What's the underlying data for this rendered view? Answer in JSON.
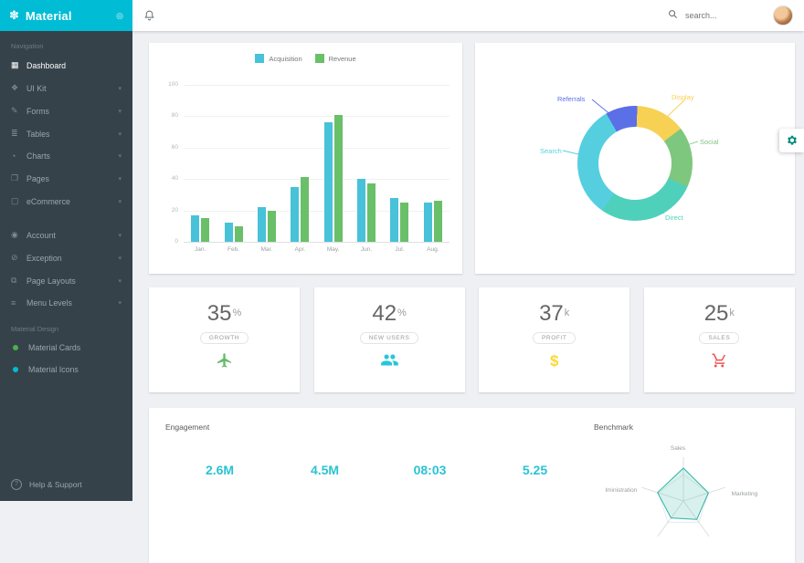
{
  "brand": {
    "name": "Material",
    "logo_icon": "material-flower",
    "pin_icon": "pin"
  },
  "topbar": {
    "bell_icon": "bell",
    "search_icon": "magnifier",
    "search_placeholder": "search..."
  },
  "colors": {
    "accent": "#00bcd4",
    "sidebar_bg": "#36424a",
    "engagement_value": "#2bc3d4"
  },
  "sidebar": {
    "nav_section": "Navigation",
    "primary": [
      {
        "label": "Dashboard",
        "icon": "dashboard",
        "active": true,
        "expandable": false
      },
      {
        "label": "UI Kit",
        "icon": "ui-kit",
        "expandable": true
      },
      {
        "label": "Forms",
        "icon": "forms",
        "expandable": true
      },
      {
        "label": "Tables",
        "icon": "tables",
        "expandable": true
      },
      {
        "label": "Charts",
        "icon": "charts",
        "expandable": true
      },
      {
        "label": "Pages",
        "icon": "pages",
        "expandable": true
      },
      {
        "label": "eCommerce",
        "icon": "ecommerce",
        "expandable": true
      }
    ],
    "secondary": [
      {
        "label": "Account",
        "icon": "account",
        "expandable": true
      },
      {
        "label": "Exception",
        "icon": "exception",
        "expandable": true
      },
      {
        "label": "Page Layouts",
        "icon": "page-layouts",
        "expandable": true
      },
      {
        "label": "Menu Levels",
        "icon": "menu-levels",
        "expandable": true
      }
    ],
    "design_section": "Material Design",
    "design_items": [
      {
        "label": "Material Cards",
        "dot_color": "#4caf50"
      },
      {
        "label": "Material Icons",
        "dot_color": "#00bcd4"
      }
    ],
    "help_label": "Help & Support"
  },
  "chart_data": [
    {
      "type": "bar",
      "categories": [
        "Jan.",
        "Feb.",
        "Mar.",
        "Apr.",
        "May.",
        "Jun.",
        "Jul.",
        "Aug."
      ],
      "series": [
        {
          "name": "Acquisition",
          "color": "#47c2d8",
          "values": [
            17,
            12,
            22,
            35,
            76,
            40,
            28,
            25
          ]
        },
        {
          "name": "Revenue",
          "color": "#6abf69",
          "values": [
            15,
            10,
            20,
            41,
            81,
            37,
            25,
            26
          ]
        }
      ],
      "ylim": [
        0,
        100
      ],
      "yticks": [
        0,
        20,
        40,
        60,
        80,
        100
      ],
      "legend_position": "top"
    },
    {
      "type": "pie",
      "subtype": "donut",
      "slices": [
        {
          "label": "Referrals",
          "value": 9,
          "color": "#5b6fe6"
        },
        {
          "label": "Display",
          "value": 14,
          "color": "#f7d154"
        },
        {
          "label": "Social",
          "value": 17,
          "color": "#7ec77e"
        },
        {
          "label": "Direct",
          "value": 28,
          "color": "#4fd0bb"
        },
        {
          "label": "Search",
          "value": 32,
          "color": "#55cfe0"
        }
      ]
    },
    {
      "type": "radar",
      "axes": [
        "Sales",
        "Marketing",
        "",
        "",
        "Administration"
      ],
      "series": [
        {
          "name": "Benchmark",
          "values": [
            75,
            60,
            52,
            48,
            62
          ]
        }
      ],
      "ylim": [
        0,
        100
      ]
    }
  ],
  "stats": [
    {
      "value": "35",
      "suffix": "%",
      "label": "GROWTH",
      "icon": "plane",
      "color": "#66bb6a"
    },
    {
      "value": "42",
      "suffix": "%",
      "label": "NEW USERS",
      "icon": "users",
      "color": "#26c6da"
    },
    {
      "value": "37",
      "suffix": "k",
      "label": "PROFIT",
      "icon": "dollar",
      "color": "#fdd835"
    },
    {
      "value": "25",
      "suffix": "k",
      "label": "SALES",
      "icon": "cart",
      "color": "#ef5350"
    }
  ],
  "bottom": {
    "engagement_title": "Engagement",
    "engagement_values": [
      "2.6M",
      "4.5M",
      "08:03",
      "5.25"
    ],
    "benchmark_title": "Benchmark"
  },
  "fab": {
    "gear_icon": "gear"
  }
}
